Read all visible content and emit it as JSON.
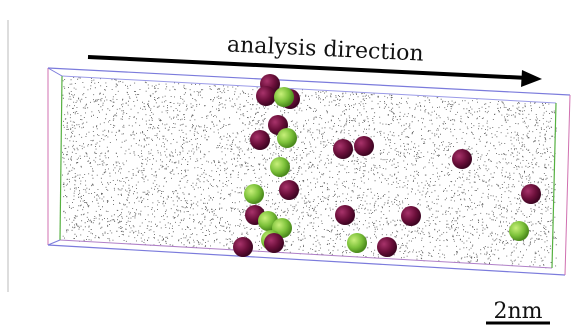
{
  "annotation": {
    "arrow_label": "analysis direction"
  },
  "scale_bar": {
    "label": "2nm"
  }
}
